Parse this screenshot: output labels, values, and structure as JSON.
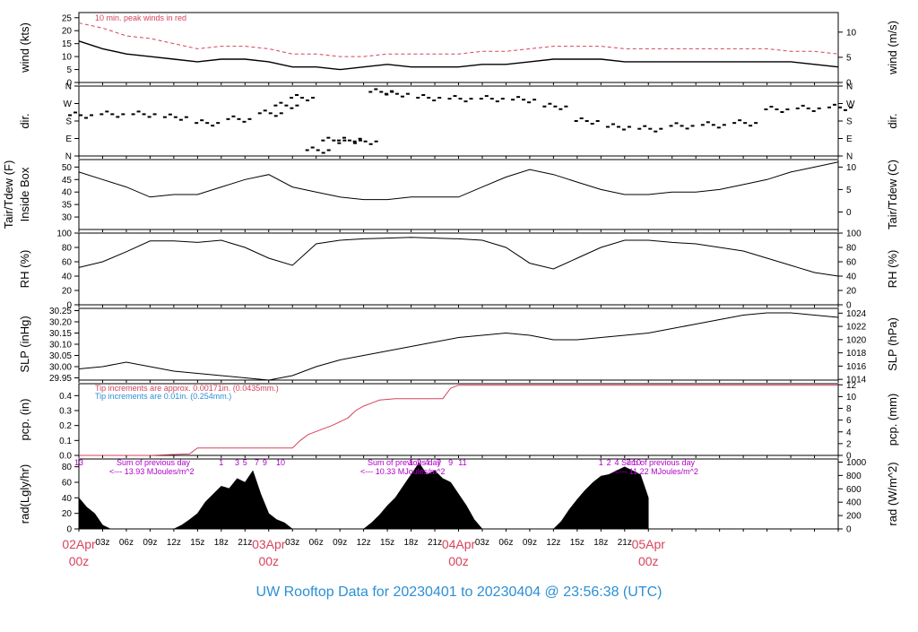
{
  "footer_title": "UW Rooftop Data for 20230401  to  20230404 @ 23:56:38  (UTC)",
  "colors": {
    "date_label": "#d6435b",
    "title": "#2b8fd6",
    "peak": "#d6435b",
    "pcp_line": "#d6435b",
    "pcp_note1": "#d6435b",
    "pcp_note2": "#2b8fd6",
    "rad_note": "#b000c8",
    "frame": "#000000"
  },
  "time_axis": {
    "hour_ticks": [
      "03z",
      "06z",
      "09z",
      "12z",
      "15z",
      "18z",
      "21z",
      "03z",
      "06z",
      "09z",
      "12z",
      "15z",
      "18z",
      "21z",
      "03z",
      "06z",
      "09z",
      "12z",
      "15z",
      "18z",
      "21z"
    ],
    "day_labels": [
      {
        "top": "02Apr",
        "bottom": "00z"
      },
      {
        "top": "03Apr",
        "bottom": "00z"
      },
      {
        "top": "04Apr",
        "bottom": "00z"
      },
      {
        "top": "05Apr",
        "bottom": "00z"
      }
    ]
  },
  "chart_data": [
    {
      "type": "line",
      "panel": "wind",
      "left_label": "wind (kts)",
      "right_label": "wind (m/s)",
      "left_ticks": [
        "0",
        "5",
        "10",
        "15",
        "20",
        "25"
      ],
      "right_ticks": [
        "0",
        "5",
        "10"
      ],
      "ylim": [
        0,
        27
      ],
      "annotation": "10 min. peak winds in red",
      "series": [
        {
          "name": "",
          "x_hours": [
            0,
            3,
            6,
            9,
            12,
            15,
            18,
            21,
            24,
            27,
            30,
            33,
            36,
            39,
            42,
            45,
            48,
            51,
            54,
            57,
            60,
            63,
            66,
            69,
            72,
            75,
            78,
            81,
            84,
            87,
            90,
            93,
            96
          ],
          "values": [
            16,
            13,
            11,
            10,
            9,
            8,
            9,
            9,
            8,
            6,
            6,
            5,
            6,
            7,
            6,
            6,
            6,
            7,
            7,
            8,
            9,
            9,
            9,
            8,
            8,
            8,
            8,
            8,
            8,
            8,
            8,
            7,
            6
          ]
        },
        {
          "name": "",
          "x_hours": [
            0,
            3,
            6,
            9,
            12,
            15,
            18,
            21,
            24,
            27,
            30,
            33,
            36,
            39,
            42,
            45,
            48,
            51,
            54,
            57,
            60,
            63,
            66,
            69,
            72,
            75,
            78,
            81,
            84,
            87,
            90,
            93,
            96
          ],
          "values": [
            23,
            21,
            18,
            17,
            15,
            13,
            14,
            14,
            13,
            11,
            11,
            10,
            10,
            11,
            11,
            11,
            11,
            12,
            12,
            13,
            14,
            14,
            14,
            13,
            13,
            13,
            13,
            13,
            13,
            13,
            12,
            12,
            11
          ]
        }
      ]
    },
    {
      "type": "scatter",
      "panel": "dir",
      "left_label": "dir.",
      "right_label": "dir.",
      "left_ticks": [
        "N",
        "E",
        "S",
        "W",
        "N"
      ],
      "right_ticks": [
        "N",
        "E",
        "S",
        "W",
        "N"
      ],
      "ylim": [
        0,
        360
      ],
      "series": [
        {
          "name": "",
          "x_hours": [
            0,
            4,
            8,
            12,
            16,
            20,
            24,
            26,
            28,
            30,
            32,
            34,
            36,
            38,
            40,
            44,
            48,
            52,
            56,
            60,
            64,
            68,
            72,
            76,
            80,
            84,
            88,
            92,
            96
          ],
          "values": [
            210,
            215,
            215,
            200,
            170,
            190,
            220,
            260,
            300,
            30,
            80,
            80,
            75,
            330,
            320,
            300,
            295,
            295,
            290,
            255,
            180,
            150,
            140,
            155,
            160,
            170,
            240,
            245,
            250
          ]
        }
      ]
    },
    {
      "type": "line",
      "panel": "temp",
      "left_label": "Tair/Tdew (F)",
      "left_label2": "Inside Box",
      "right_label": "Tair/Tdew (C)",
      "left_ticks": [
        "30",
        "35",
        "40",
        "45",
        "50"
      ],
      "right_ticks": [
        "0",
        "5",
        "10"
      ],
      "ylim": [
        25,
        53
      ],
      "series": [
        {
          "name": "",
          "x_hours": [
            0,
            3,
            6,
            9,
            12,
            15,
            18,
            21,
            24,
            27,
            30,
            33,
            36,
            39,
            42,
            45,
            48,
            51,
            54,
            57,
            60,
            63,
            66,
            69,
            72,
            75,
            78,
            81,
            84,
            87,
            90,
            93,
            96
          ],
          "values": [
            48,
            45,
            42,
            38,
            39,
            39,
            42,
            45,
            47,
            42,
            40,
            38,
            37,
            37,
            38,
            38,
            38,
            42,
            46,
            49,
            47,
            44,
            41,
            39,
            39,
            40,
            40,
            41,
            43,
            45,
            48,
            50,
            52
          ]
        }
      ]
    },
    {
      "type": "line",
      "panel": "rh",
      "left_label": "RH (%)",
      "right_label": "RH (%)",
      "left_ticks": [
        "0",
        "20",
        "40",
        "60",
        "80",
        "100"
      ],
      "right_ticks": [
        "0",
        "20",
        "40",
        "60",
        "80",
        "100"
      ],
      "ylim": [
        0,
        100
      ],
      "series": [
        {
          "name": "",
          "x_hours": [
            0,
            3,
            6,
            9,
            12,
            15,
            18,
            21,
            24,
            27,
            30,
            33,
            36,
            39,
            42,
            45,
            48,
            51,
            54,
            57,
            60,
            63,
            66,
            69,
            72,
            75,
            78,
            81,
            84,
            87,
            90,
            93,
            96
          ],
          "values": [
            52,
            60,
            74,
            89,
            89,
            87,
            90,
            80,
            65,
            55,
            85,
            90,
            92,
            93,
            94,
            93,
            92,
            90,
            80,
            58,
            50,
            65,
            80,
            90,
            90,
            87,
            85,
            80,
            75,
            65,
            55,
            45,
            40
          ]
        }
      ]
    },
    {
      "type": "line",
      "panel": "slp",
      "left_label": "SLP (inHg)",
      "right_label": "SLP (hPa)",
      "left_ticks": [
        "29.95",
        "30.00",
        "30.05",
        "30.10",
        "30.15",
        "30.20",
        "30.25"
      ],
      "right_ticks": [
        "1014",
        "1016",
        "1018",
        "1020",
        "1022",
        "1024"
      ],
      "ylim": [
        29.94,
        30.26
      ],
      "series": [
        {
          "name": "",
          "x_hours": [
            0,
            3,
            6,
            9,
            12,
            15,
            18,
            21,
            24,
            27,
            30,
            33,
            36,
            39,
            42,
            45,
            48,
            51,
            54,
            57,
            60,
            63,
            66,
            69,
            72,
            75,
            78,
            81,
            84,
            87,
            90,
            93,
            96
          ],
          "values": [
            29.99,
            30.0,
            30.02,
            30.0,
            29.98,
            29.97,
            29.96,
            29.95,
            29.94,
            29.96,
            30.0,
            30.03,
            30.05,
            30.07,
            30.09,
            30.11,
            30.13,
            30.14,
            30.15,
            30.14,
            30.12,
            30.12,
            30.13,
            30.14,
            30.15,
            30.17,
            30.19,
            30.21,
            30.23,
            30.24,
            30.24,
            30.23,
            30.22
          ]
        }
      ]
    },
    {
      "type": "line",
      "panel": "pcp",
      "left_label": "pcp. (in)",
      "right_label": "pcp. (mm)",
      "left_ticks": [
        "0.0",
        "0.1",
        "0.2",
        "0.3",
        "0.4"
      ],
      "right_ticks": [
        "0",
        "2",
        "4",
        "6",
        "8",
        "10",
        "12"
      ],
      "ylim": [
        0,
        0.48
      ],
      "note1": "Tip increments are approx. 0.00171in. (0.0435mm.)",
      "note2": "Tip increments are 0.01in. (0.254mm.)",
      "series": [
        {
          "name": "",
          "x_hours": [
            0,
            9,
            14,
            15,
            27,
            28,
            29,
            30,
            32,
            34,
            35,
            36,
            37,
            38,
            40,
            44,
            46,
            47,
            48,
            96
          ],
          "values": [
            0.0,
            0.0,
            0.01,
            0.05,
            0.05,
            0.1,
            0.14,
            0.16,
            0.2,
            0.25,
            0.3,
            0.33,
            0.35,
            0.37,
            0.38,
            0.38,
            0.38,
            0.45,
            0.47,
            0.47
          ]
        }
      ]
    },
    {
      "type": "area",
      "panel": "rad",
      "left_label": "rad(Lgly/hr)",
      "right_label": "rad (W/m^2)",
      "left_ticks": [
        "0",
        "20",
        "40",
        "60",
        "80"
      ],
      "right_ticks": [
        "0",
        "200",
        "400",
        "600",
        "800",
        "1000"
      ],
      "ylim": [
        0,
        90
      ],
      "annotations": [
        {
          "title": "Sum of previous day",
          "value": "<--- 13.93 MJoules/m^2"
        },
        {
          "title": "Sum of previous day",
          "value": "<--- 10.33 MJoules/m^2"
        },
        {
          "title": "Sum of previous day",
          "value": "<--- 11.22 MJoules/m^2"
        }
      ],
      "hour_marks": [
        {
          "x_hours": 0,
          "label": "13"
        },
        {
          "x_hours": 18,
          "label": "1"
        },
        {
          "x_hours": 20,
          "label": "3"
        },
        {
          "x_hours": 21,
          "label": "5"
        },
        {
          "x_hours": 22.5,
          "label": "7"
        },
        {
          "x_hours": 23.5,
          "label": "9"
        },
        {
          "x_hours": 25.5,
          "label": "10"
        },
        {
          "x_hours": 42,
          "label": "1"
        },
        {
          "x_hours": 43,
          "label": "2"
        },
        {
          "x_hours": 44,
          "label": "4"
        },
        {
          "x_hours": 45.5,
          "label": "7"
        },
        {
          "x_hours": 47,
          "label": "9"
        },
        {
          "x_hours": 48.5,
          "label": "11"
        },
        {
          "x_hours": 66,
          "label": "1"
        },
        {
          "x_hours": 67,
          "label": "2"
        },
        {
          "x_hours": 68,
          "label": "4"
        },
        {
          "x_hours": 69.5,
          "label": "7"
        },
        {
          "x_hours": 70.5,
          "label": "10"
        }
      ],
      "series": [
        {
          "name": "",
          "x_hours": [
            0,
            1,
            2,
            3,
            4,
            12,
            13,
            14,
            15,
            16,
            17,
            18,
            19,
            20,
            21,
            22,
            23,
            24,
            25,
            26,
            27,
            36,
            37,
            38,
            39,
            40,
            41,
            42,
            43,
            44,
            45,
            46,
            47,
            48,
            49,
            50,
            51,
            60,
            61,
            62,
            63,
            64,
            65,
            66,
            67,
            68,
            69,
            70,
            71,
            72
          ],
          "values": [
            40,
            28,
            20,
            5,
            0,
            0,
            5,
            12,
            20,
            35,
            45,
            55,
            52,
            65,
            60,
            75,
            45,
            20,
            12,
            8,
            0,
            0,
            8,
            18,
            30,
            40,
            55,
            70,
            85,
            70,
            75,
            65,
            60,
            45,
            30,
            12,
            0,
            0,
            10,
            25,
            38,
            50,
            60,
            68,
            70,
            75,
            80,
            75,
            70,
            40
          ]
        }
      ]
    }
  ]
}
